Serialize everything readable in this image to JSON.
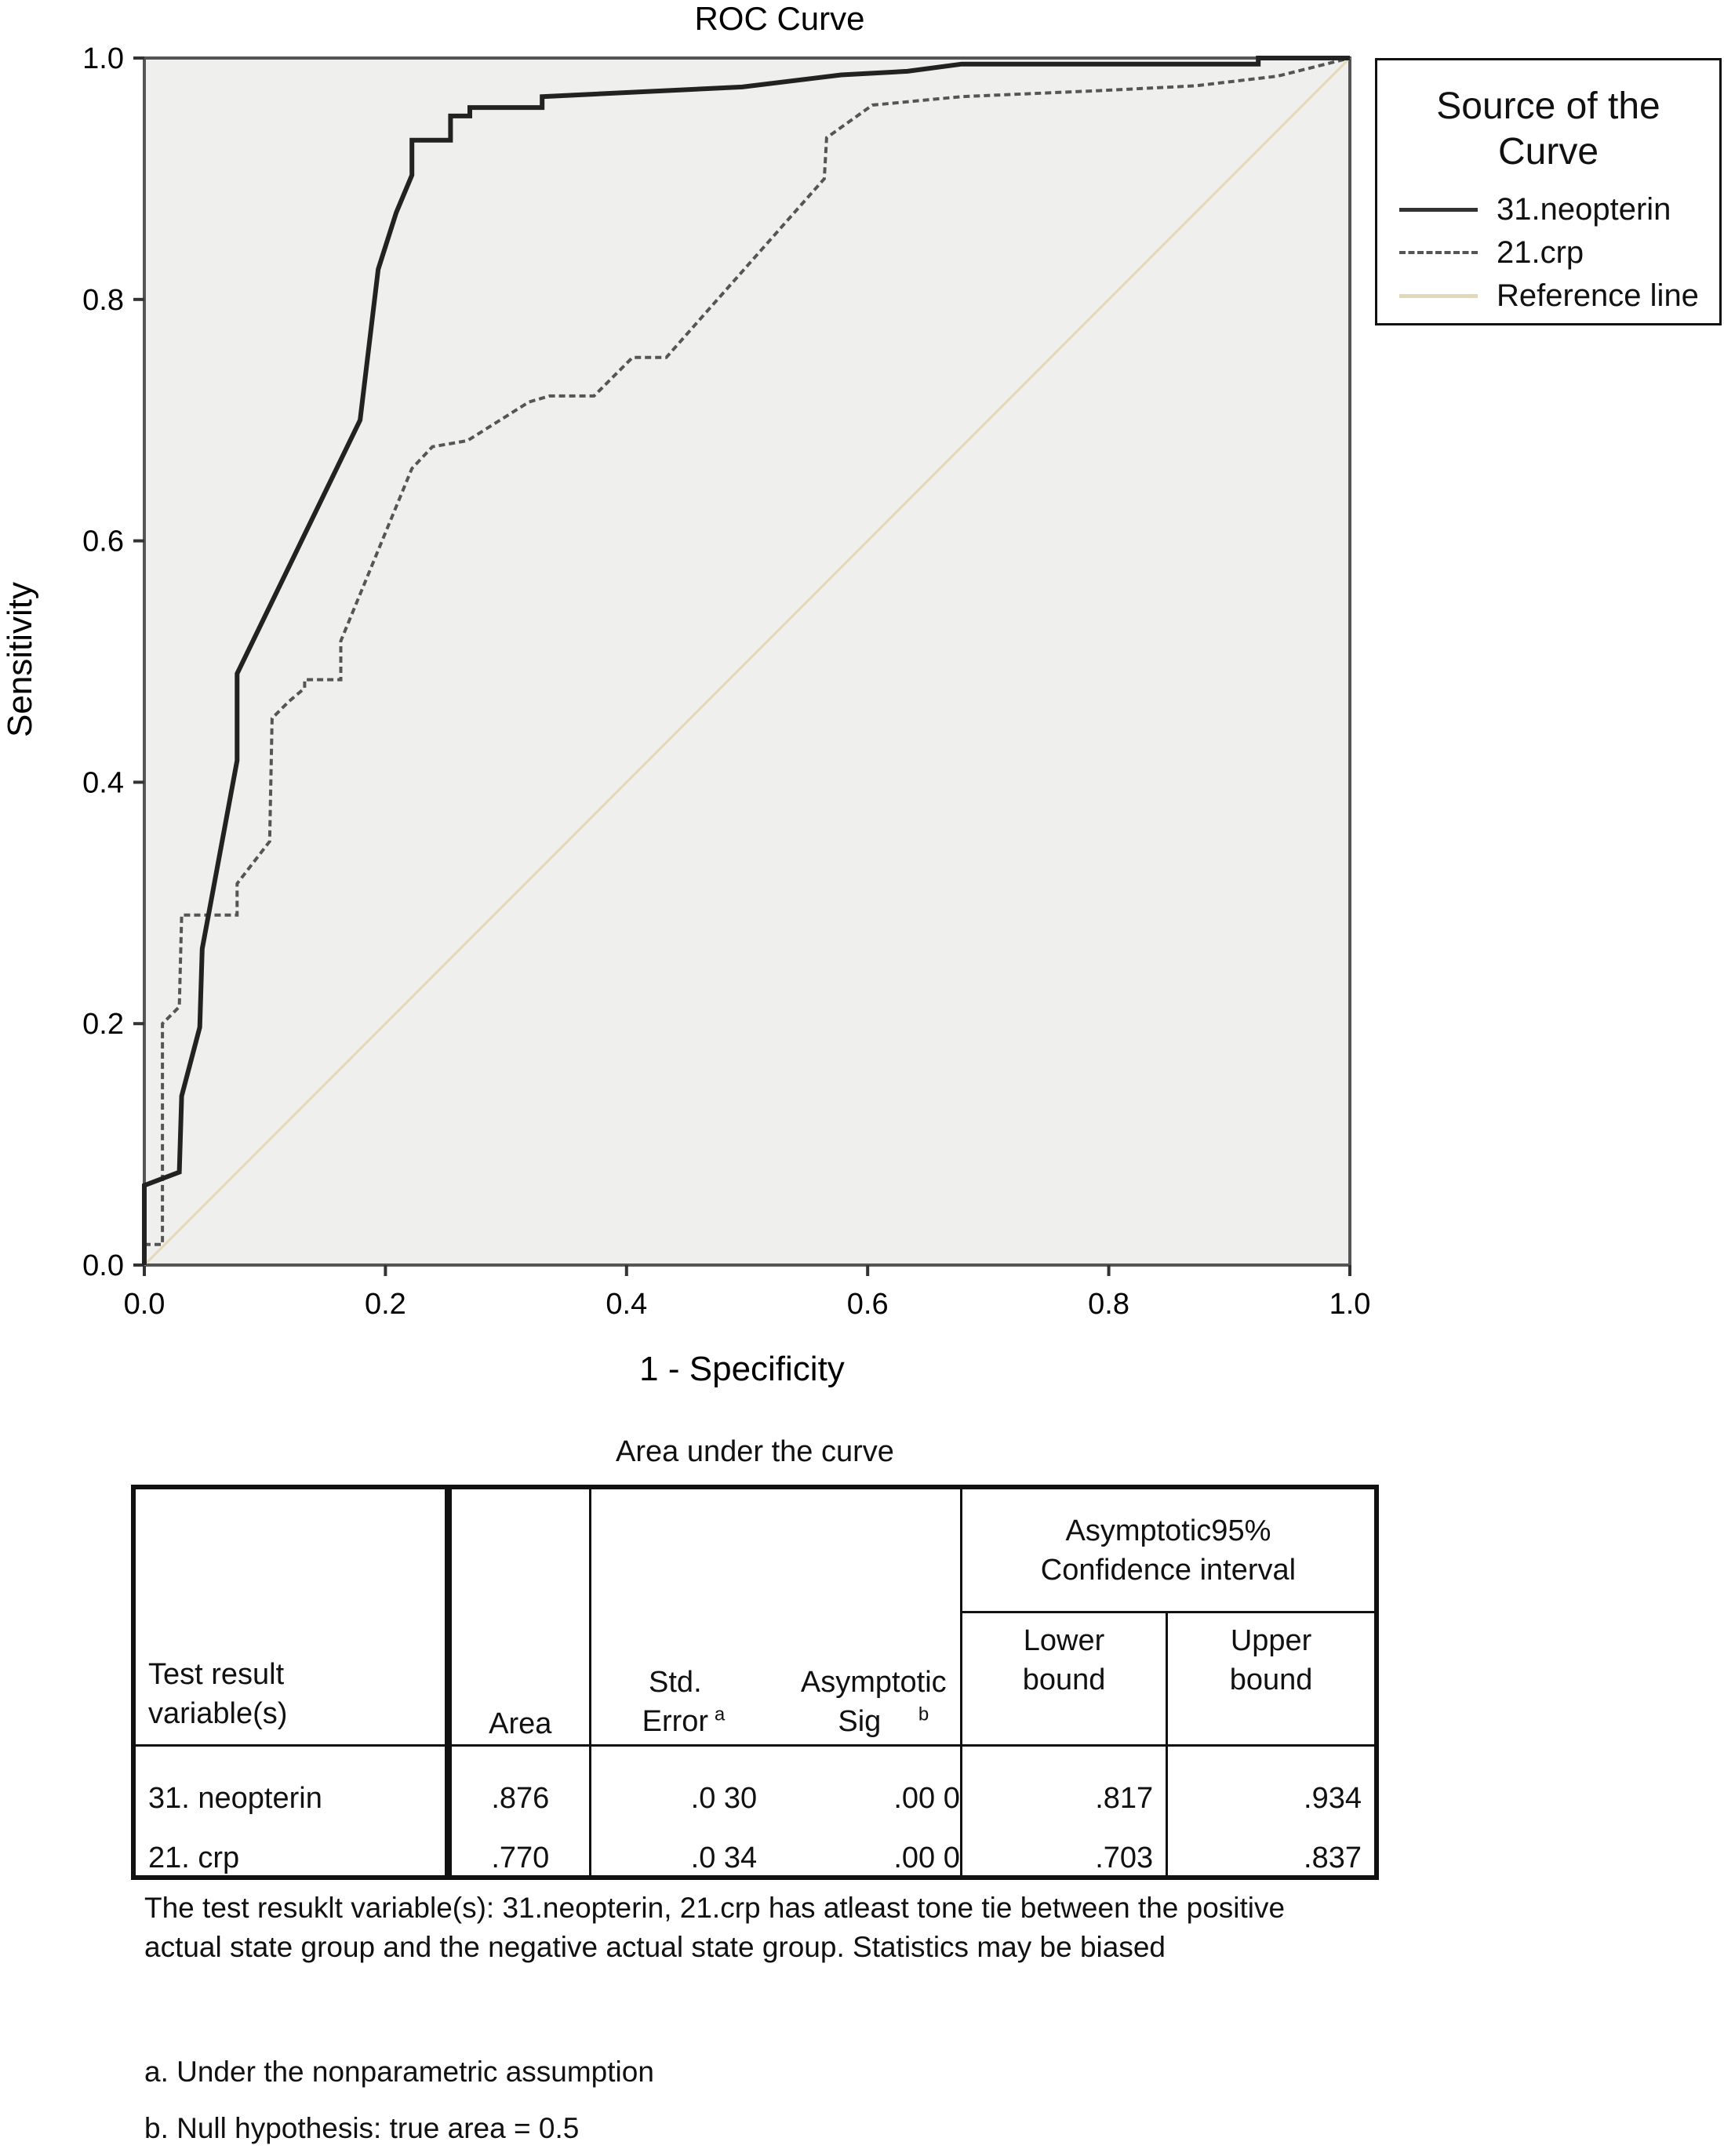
{
  "chart_data": {
    "type": "line",
    "title": "ROC Curve",
    "xlabel": "1 - Specificity",
    "ylabel": "Sensitivity",
    "xlim": [
      0,
      1
    ],
    "ylim": [
      0,
      1
    ],
    "xticks": [
      "0.0",
      "0.2",
      "0.4",
      "0.6",
      "0.8",
      "1.0"
    ],
    "yticks": [
      "0.0",
      "0.2",
      "0.4",
      "0.6",
      "0.8",
      "1.0"
    ],
    "grid": false,
    "plot_background": "#efefed",
    "legend": {
      "title": "Source of the Curve",
      "placement": "right"
    },
    "series": [
      {
        "name": "31.neopterin",
        "style": "solid",
        "color": "#222222",
        "points": [
          [
            0,
            0
          ],
          [
            0,
            0.066
          ],
          [
            0.029,
            0.077
          ],
          [
            0.031,
            0.14
          ],
          [
            0.046,
            0.197
          ],
          [
            0.048,
            0.262
          ],
          [
            0.077,
            0.418
          ],
          [
            0.077,
            0.49
          ],
          [
            0.179,
            0.7
          ],
          [
            0.194,
            0.825
          ],
          [
            0.209,
            0.872
          ],
          [
            0.222,
            0.903
          ],
          [
            0.222,
            0.932
          ],
          [
            0.254,
            0.932
          ],
          [
            0.254,
            0.952
          ],
          [
            0.27,
            0.952
          ],
          [
            0.27,
            0.959
          ],
          [
            0.33,
            0.959
          ],
          [
            0.33,
            0.968
          ],
          [
            0.496,
            0.976
          ],
          [
            0.553,
            0.983
          ],
          [
            0.578,
            0.986
          ],
          [
            0.633,
            0.989
          ],
          [
            0.678,
            0.995
          ],
          [
            0.924,
            0.995
          ],
          [
            0.924,
            1
          ],
          [
            1,
            1
          ]
        ]
      },
      {
        "name": "21.crp",
        "style": "dashed",
        "color": "#555555",
        "points": [
          [
            0,
            0.017
          ],
          [
            0.015,
            0.017
          ],
          [
            0.015,
            0.2
          ],
          [
            0.029,
            0.214
          ],
          [
            0.031,
            0.29
          ],
          [
            0.077,
            0.29
          ],
          [
            0.077,
            0.316
          ],
          [
            0.104,
            0.351
          ],
          [
            0.106,
            0.453
          ],
          [
            0.12,
            0.467
          ],
          [
            0.133,
            0.478
          ],
          [
            0.133,
            0.485
          ],
          [
            0.163,
            0.485
          ],
          [
            0.163,
            0.517
          ],
          [
            0.222,
            0.66
          ],
          [
            0.239,
            0.678
          ],
          [
            0.268,
            0.683
          ],
          [
            0.319,
            0.715
          ],
          [
            0.336,
            0.72
          ],
          [
            0.373,
            0.72
          ],
          [
            0.405,
            0.752
          ],
          [
            0.433,
            0.752
          ],
          [
            0.564,
            0.9
          ],
          [
            0.566,
            0.934
          ],
          [
            0.604,
            0.961
          ],
          [
            0.678,
            0.968
          ],
          [
            0.792,
            0.973
          ],
          [
            0.872,
            0.977
          ],
          [
            0.94,
            0.985
          ],
          [
            1,
            1
          ]
        ]
      },
      {
        "name": "Reference line",
        "style": "solid",
        "color": "#e3d9b8",
        "points": [
          [
            0,
            0
          ],
          [
            1,
            1
          ]
        ]
      }
    ]
  },
  "table": {
    "title": "Area under the curve",
    "headers": {
      "variable": "Test result variable(s)",
      "area": "Area",
      "std_error": "Std. Error",
      "std_error_note": "a",
      "sig": "Asymptotic Sig",
      "sig_note": "b",
      "ci": "Asymptotic95% Confidence interval",
      "lower": "Lower bound",
      "upper": "Upper bound"
    },
    "rows": [
      {
        "variable": "31. neopterin",
        "area": ".876",
        "std_error": ".0 30",
        "sig": ".00 0",
        "lower": ".817",
        "upper": ".934"
      },
      {
        "variable": "21. crp",
        "area": ".770",
        "std_error": ".0 34",
        "sig": ".00 0",
        "lower": ".703",
        "upper": ".837"
      }
    ]
  },
  "footnotes": {
    "note": "The test resuklt variable(s): 31.neopterin, 21.crp has atleast tone tie between the positive actual state group and the negative actual state group. Statistics may be biased",
    "a": "a. Under the nonparametric assumption",
    "b": "b. Null hypothesis: true area = 0.5"
  }
}
